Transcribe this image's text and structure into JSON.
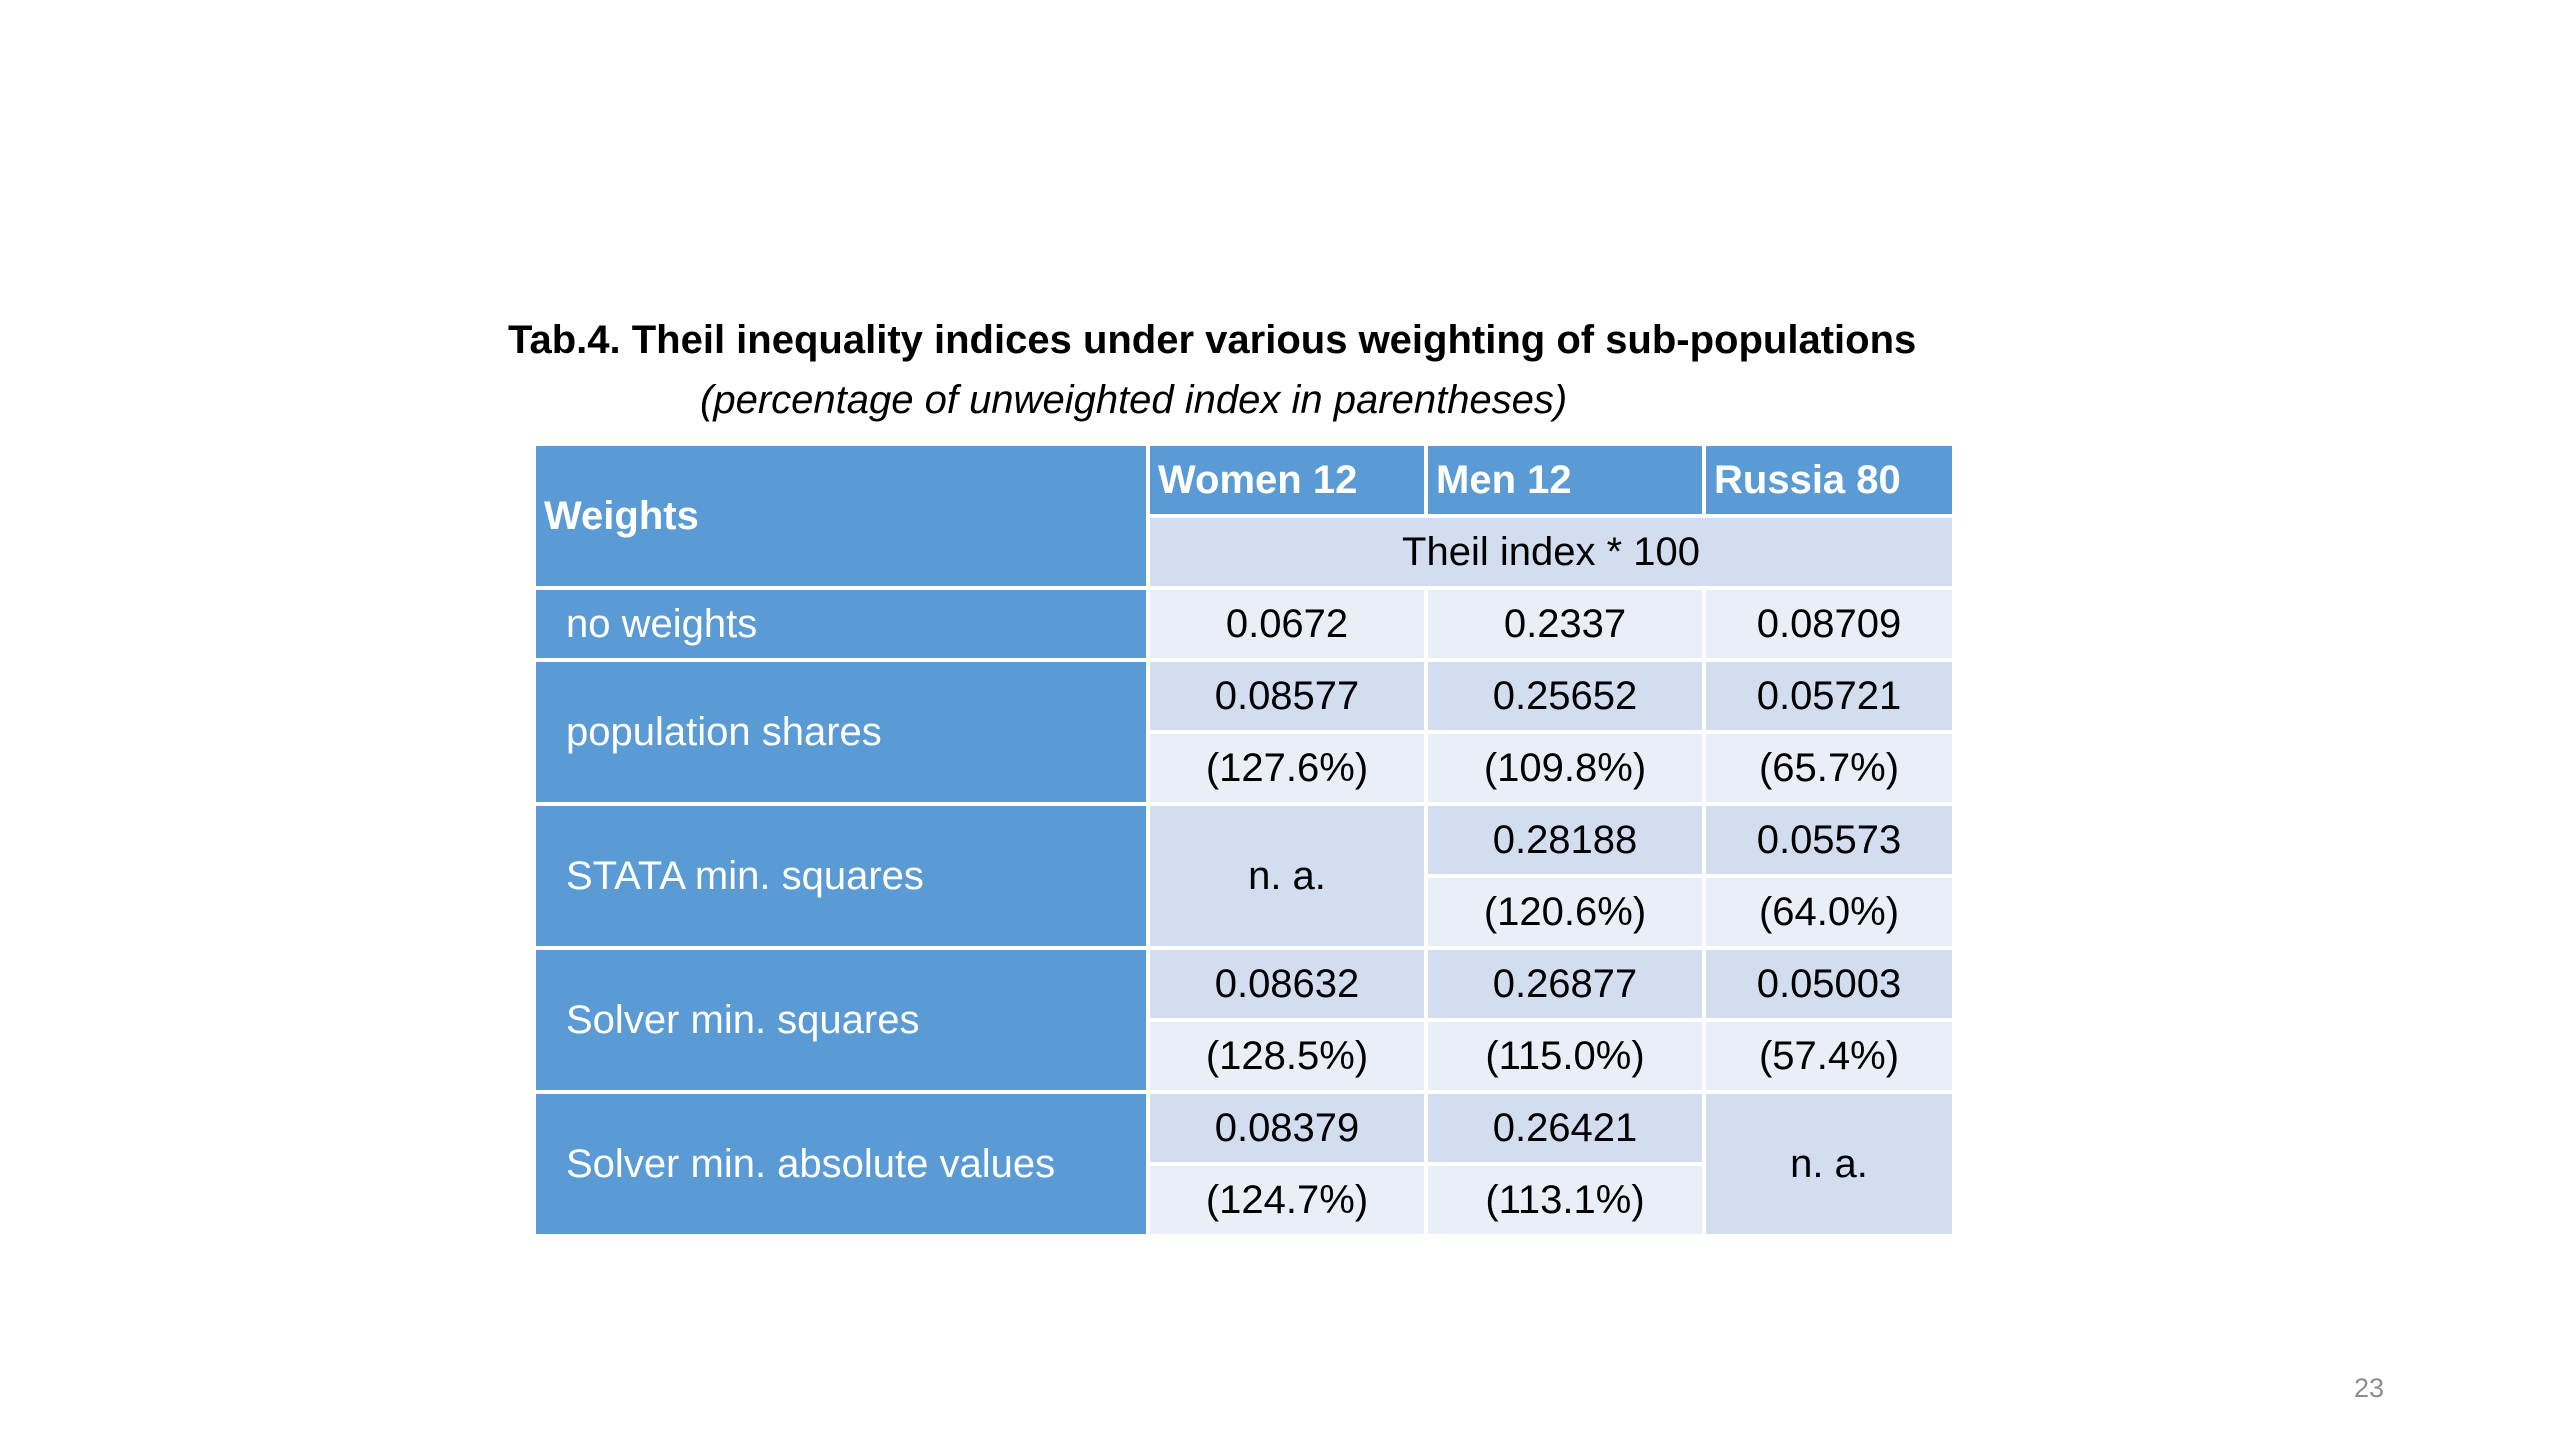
{
  "slide": {
    "title": "Tab.4. Theil inequality indices under various weighting of sub-populations",
    "subtitle": "(percentage of unweighted index in parentheses)",
    "page_number": "23"
  },
  "table": {
    "header": {
      "weights_label": "Weights",
      "columns": [
        "Women 12",
        "Men 12",
        "Russia 80"
      ],
      "unit_label": "Theil index * 100"
    },
    "rows": [
      {
        "label": "no weights",
        "women_value": "0.0672",
        "men_value": "0.2337",
        "russia_value": "0.08709"
      },
      {
        "label": "population shares",
        "women_value": "0.08577",
        "women_pct": "(127.6%)",
        "men_value": "0.25652",
        "men_pct": "(109.8%)",
        "russia_value": "0.05721",
        "russia_pct": "(65.7%)"
      },
      {
        "label": "STATA min. squares",
        "women_value": "n. a.",
        "men_value": "0.28188",
        "men_pct": "(120.6%)",
        "russia_value": "0.05573",
        "russia_pct": "(64.0%)"
      },
      {
        "label": "Solver min. squares",
        "women_value": "0.08632",
        "women_pct": "(128.5%)",
        "men_value": "0.26877",
        "men_pct": "(115.0%)",
        "russia_value": "0.05003",
        "russia_pct": "(57.4%)"
      },
      {
        "label": "Solver min. absolute values",
        "women_value": "0.08379",
        "women_pct": "(124.7%)",
        "men_value": "0.26421",
        "men_pct": "(113.1%)",
        "russia_value": "n. a."
      }
    ]
  },
  "colors": {
    "header_blue": "#5b9bd5",
    "cell_dark": "#d2def0",
    "cell_light": "#eaeff7",
    "page_number_gray": "#8c8c8c"
  }
}
